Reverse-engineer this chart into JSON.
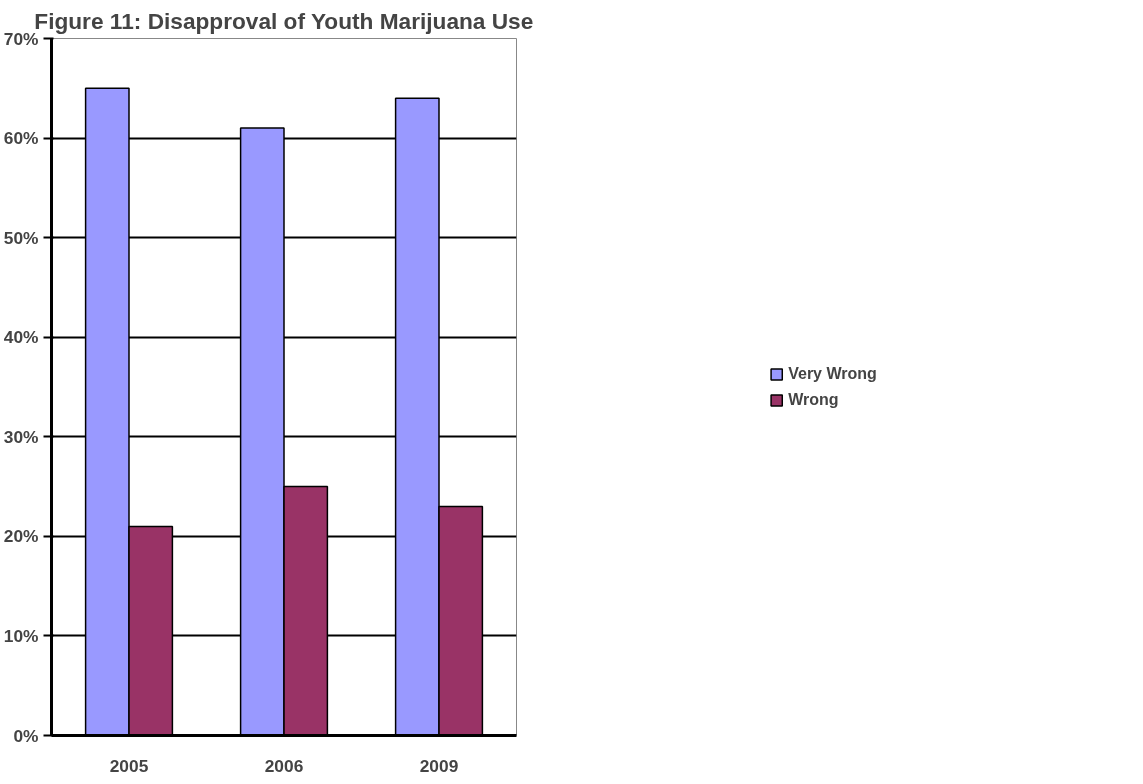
{
  "chart_data": {
    "type": "bar",
    "title": "Figure 11: Disapproval of Youth Marijuana Use",
    "categories": [
      "2005",
      "2006",
      "2009"
    ],
    "series": [
      {
        "name": "Very Wrong",
        "color": "#9999ff",
        "values": [
          65,
          61,
          64
        ]
      },
      {
        "name": "Wrong",
        "color": "#993366",
        "values": [
          21,
          25,
          23
        ]
      }
    ],
    "ylim": [
      0,
      70
    ],
    "yticks": [
      {
        "value": 0,
        "label": "0%"
      },
      {
        "value": 10,
        "label": "10%"
      },
      {
        "value": 20,
        "label": "20%"
      },
      {
        "value": 30,
        "label": "30%"
      },
      {
        "value": 40,
        "label": "40%"
      },
      {
        "value": 50,
        "label": "50%"
      },
      {
        "value": 60,
        "label": "60%"
      },
      {
        "value": 70,
        "label": "70%"
      }
    ],
    "grid": "y",
    "legend": "right"
  }
}
